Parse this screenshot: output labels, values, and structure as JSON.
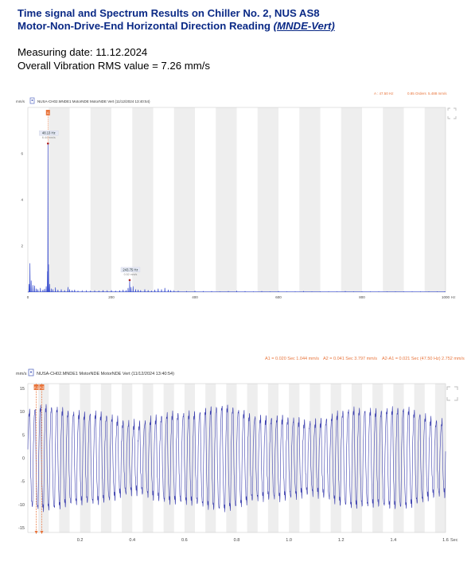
{
  "header": {
    "title_line1": "Time signal and Spectrum Results on Chiller No. 2, NUS AS8",
    "title_line2_prefix": "Motor-Non-Drive-End Horizontal Direction Reading ",
    "title_line2_link": "(MNDE-Vert)",
    "measuring_date": "Measuring date: 11.12.2024",
    "overall_rms": "Overall Vibration RMS value = 7.26 mm/s"
  },
  "colors": {
    "title": "#0b2a86",
    "spectrum_line": "#3a4fcf",
    "time_line": "#3b3fae",
    "cursor": "#e8743b",
    "band_grey": "#eeeeee"
  },
  "chart_data": [
    {
      "type": "line",
      "name": "spectrum",
      "unit_label": "mm/s",
      "icon": "sensor-icon",
      "measurement_label": "NUSA-CH02.MNDE1  MotorNDE MotorNDE Vert (11/12/2024 13:40:54)",
      "readout": {
        "cursor_a": "A : 47.50 Hz",
        "orders": "0.85 Orders",
        "amplitude": "5.488 mm/s"
      },
      "x_unit": "Hz",
      "xlim": [
        0,
        1000
      ],
      "ylim": [
        0,
        8
      ],
      "x_ticks": [
        0,
        200,
        400,
        600,
        800,
        1000
      ],
      "y_ticks": [
        2,
        4,
        6
      ],
      "cursor_marker": "A",
      "peaks": [
        {
          "x": 48.13,
          "y": 6.44,
          "label": "48.13 Hz",
          "sublabel": "6.44 mm/s"
        },
        {
          "x": 243.75,
          "y": 0.52,
          "label": "243.75 Hz",
          "sublabel": "0.52 mm/s"
        }
      ],
      "x": [
        3,
        5,
        8,
        12,
        16,
        20,
        24,
        30,
        36,
        40,
        44,
        47,
        48.13,
        49.5,
        52,
        56,
        60,
        66,
        72,
        80,
        88,
        96,
        100,
        106,
        112,
        120,
        130,
        140,
        150,
        160,
        170,
        180,
        190,
        200,
        210,
        220,
        228,
        235,
        240,
        243.75,
        247,
        252,
        258,
        264,
        270,
        280,
        288,
        296,
        304,
        312,
        320,
        328,
        336,
        342,
        350,
        360,
        380,
        400,
        420,
        440,
        460,
        480,
        500,
        520,
        540,
        560,
        580,
        600,
        620,
        640,
        660,
        680,
        700,
        720,
        740,
        760,
        780,
        800,
        820,
        840,
        860,
        880,
        900,
        920,
        940,
        960,
        980,
        998
      ],
      "y": [
        0.35,
        1.25,
        0.5,
        0.3,
        0.28,
        0.15,
        0.12,
        0.18,
        0.1,
        0.14,
        0.25,
        0.9,
        6.44,
        1.2,
        0.35,
        0.15,
        0.12,
        0.2,
        0.1,
        0.12,
        0.08,
        0.22,
        0.12,
        0.08,
        0.1,
        0.06,
        0.05,
        0.05,
        0.06,
        0.05,
        0.06,
        0.08,
        0.05,
        0.08,
        0.06,
        0.07,
        0.1,
        0.08,
        0.18,
        0.52,
        0.22,
        0.25,
        0.12,
        0.1,
        0.08,
        0.12,
        0.08,
        0.06,
        0.1,
        0.15,
        0.12,
        0.18,
        0.1,
        0.08,
        0.05,
        0.04,
        0.03,
        0.04,
        0.03,
        0.03,
        0.02,
        0.03,
        0.04,
        0.03,
        0.02,
        0.03,
        0.02,
        0.03,
        0.02,
        0.02,
        0.03,
        0.02,
        0.02,
        0.02,
        0.02,
        0.03,
        0.02,
        0.02,
        0.02,
        0.02,
        0.02,
        0.02,
        0.02,
        0.02,
        0.02,
        0.02,
        0.02,
        0.02
      ],
      "grid": "alternating vertical bands",
      "legend": "none"
    },
    {
      "type": "line",
      "name": "time signal",
      "unit_label": "mm/s",
      "icon": "sensor-icon",
      "measurement_label": "NUSA-CH02.MNDE1  MotorNDE MotorNDE Vert (11/12/2024 13:40:54)",
      "readout": {
        "a1": "A1 = 0.020 Sec  1.044 mm/s",
        "a2": "A2 = 0.041 Sec  3.797 mm/s",
        "a2_a1": "A2-A1 = 0.021 Sec  (47.50 Hz)  2.752 mm/s"
      },
      "x_unit": "Sec",
      "xlim": [
        0,
        1.6
      ],
      "ylim": [
        -16,
        16
      ],
      "x_ticks": [
        0.2,
        0.4,
        0.6,
        0.8,
        1.0,
        1.2,
        1.4,
        1.6
      ],
      "x_tick_labels": [
        "0.2",
        "0.4",
        "0.6",
        "0.8",
        "1.0",
        "1.2",
        "1.4",
        "1.6"
      ],
      "y_ticks": [
        15,
        10,
        5,
        0,
        -5,
        -10,
        -15
      ],
      "cursors": [
        {
          "label": "A1",
          "x": 0.02,
          "y": 1.044
        },
        {
          "label": "A2",
          "x": 0.041,
          "y": 3.797
        }
      ],
      "signal": {
        "frequency_hz": 47.5,
        "amplitude_range_mm_s": [
          8,
          13
        ],
        "noise": "secondary peaks on each cycle"
      },
      "grid": "alternating vertical bands",
      "legend": "none"
    }
  ]
}
